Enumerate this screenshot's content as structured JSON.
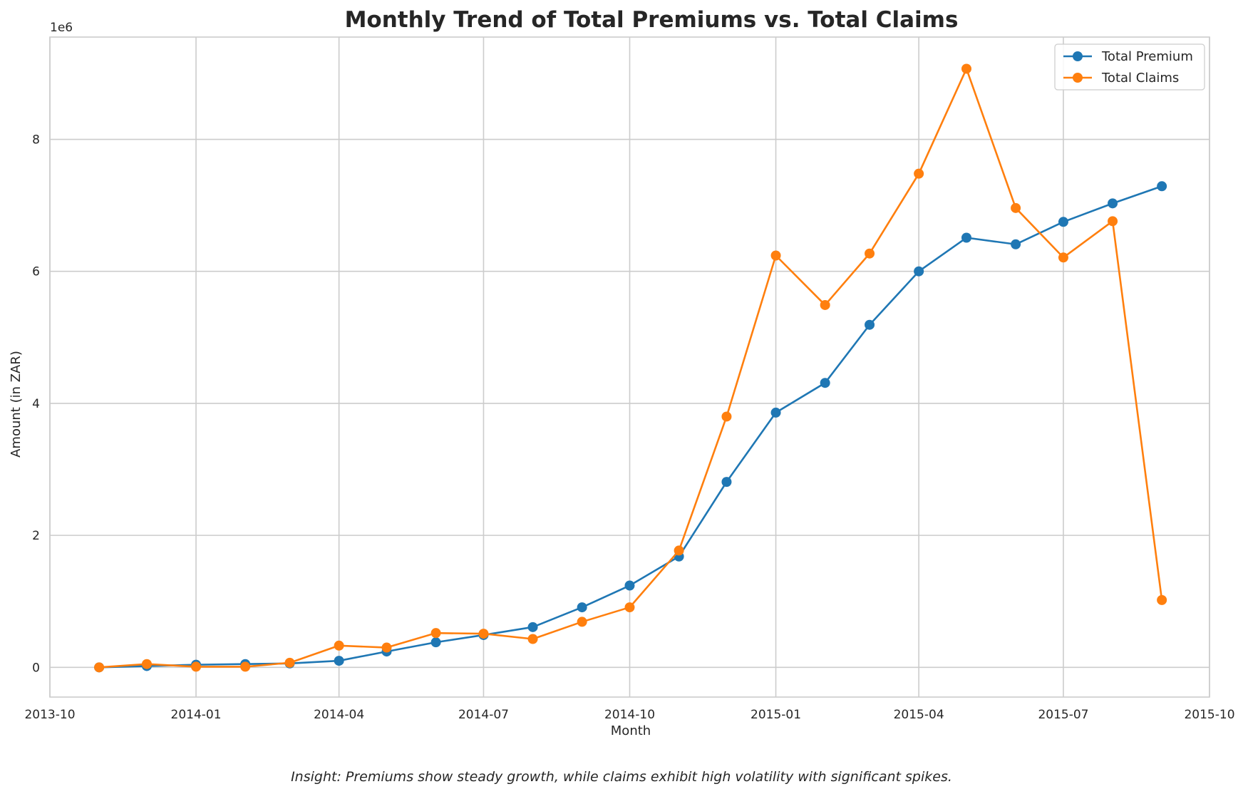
{
  "chart_data": {
    "type": "line",
    "title": "Monthly Trend of Total Premiums vs. Total Claims",
    "xlabel": "Month",
    "ylabel": "Amount (in ZAR)",
    "y_offset_label": "1e6",
    "x_ticks": [
      "2013-10",
      "2014-01",
      "2014-04",
      "2014-07",
      "2014-10",
      "2015-01",
      "2015-04",
      "2015-07",
      "2015-10"
    ],
    "y_ticks": [
      0,
      2,
      4,
      6,
      8
    ],
    "xlim": [
      "2013-10-01",
      "2015-10-01"
    ],
    "ylim": [
      -0.45,
      9.55
    ],
    "y_unit_scale": "1e6",
    "grid": true,
    "legend_position": "top-right",
    "x": [
      "2013-11-01",
      "2013-12-01",
      "2014-01-01",
      "2014-02-01",
      "2014-03-01",
      "2014-04-01",
      "2014-05-01",
      "2014-06-01",
      "2014-07-01",
      "2014-08-01",
      "2014-09-01",
      "2014-10-01",
      "2014-11-01",
      "2014-12-01",
      "2015-01-01",
      "2015-02-01",
      "2015-03-01",
      "2015-04-01",
      "2015-05-01",
      "2015-06-01",
      "2015-07-01",
      "2015-08-01",
      "2015-09-01"
    ],
    "series": [
      {
        "name": "Total Premium",
        "color": "#1f77b4",
        "values": [
          0.0,
          0.02,
          0.04,
          0.05,
          0.06,
          0.1,
          0.24,
          0.38,
          0.49,
          0.61,
          0.91,
          1.24,
          1.68,
          2.81,
          3.86,
          4.31,
          5.19,
          6.0,
          6.51,
          6.41,
          6.75,
          7.03,
          7.29
        ]
      },
      {
        "name": "Total Claims",
        "color": "#ff7f0e",
        "values": [
          0.0,
          0.05,
          0.01,
          0.01,
          0.07,
          0.33,
          0.3,
          0.52,
          0.51,
          0.43,
          0.69,
          0.91,
          1.77,
          3.8,
          6.24,
          5.49,
          6.27,
          7.48,
          9.07,
          6.96,
          6.21,
          6.76,
          1.02
        ]
      }
    ]
  },
  "caption": "Insight: Premiums show steady growth, while claims exhibit high volatility with significant spikes."
}
